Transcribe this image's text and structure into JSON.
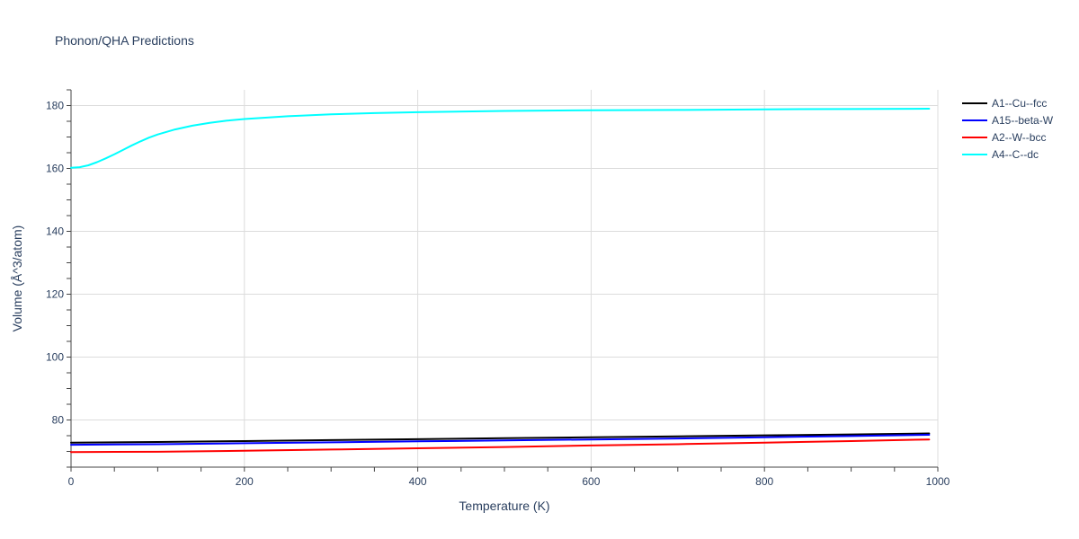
{
  "chart_data": {
    "type": "line",
    "title": "Phonon/QHA Predictions",
    "xlabel": "Temperature (K)",
    "ylabel": "Volume (Å^3/atom)",
    "xlim": [
      0,
      1000
    ],
    "ylim": [
      65,
      185
    ],
    "x_ticks": [
      0,
      200,
      400,
      600,
      800,
      1000
    ],
    "y_ticks": [
      80,
      100,
      120,
      140,
      160,
      180
    ],
    "grid": true,
    "legend_position": "top-right",
    "series": [
      {
        "name": "A1--Cu--fcc",
        "color": "#000000",
        "x": [
          0,
          100,
          200,
          300,
          400,
          500,
          600,
          700,
          800,
          900,
          990
        ],
        "values": [
          72.8,
          73.0,
          73.3,
          73.6,
          73.9,
          74.2,
          74.5,
          74.8,
          75.1,
          75.4,
          75.7
        ]
      },
      {
        "name": "A15--beta-W",
        "color": "#0000ff",
        "x": [
          0,
          100,
          200,
          300,
          400,
          500,
          600,
          700,
          800,
          900,
          990
        ],
        "values": [
          72.1,
          72.3,
          72.6,
          72.9,
          73.2,
          73.5,
          73.8,
          74.1,
          74.5,
          74.9,
          75.3
        ]
      },
      {
        "name": "A2--W--bcc",
        "color": "#ff0000",
        "x": [
          0,
          100,
          200,
          300,
          400,
          500,
          600,
          700,
          800,
          900,
          990
        ],
        "values": [
          69.8,
          69.9,
          70.2,
          70.6,
          71.0,
          71.4,
          71.9,
          72.3,
          72.8,
          73.3,
          73.8
        ]
      },
      {
        "name": "A4--C--dc",
        "color": "#00ffff",
        "x": [
          0,
          10,
          20,
          30,
          40,
          50,
          60,
          70,
          80,
          90,
          100,
          120,
          140,
          160,
          180,
          200,
          250,
          300,
          350,
          400,
          500,
          600,
          700,
          800,
          900,
          990
        ],
        "values": [
          160.2,
          160.4,
          161.0,
          162.0,
          163.2,
          164.5,
          165.9,
          167.3,
          168.6,
          169.8,
          170.8,
          172.4,
          173.6,
          174.5,
          175.2,
          175.7,
          176.6,
          177.2,
          177.6,
          177.9,
          178.3,
          178.5,
          178.6,
          178.8,
          178.9,
          179.0
        ]
      }
    ]
  }
}
